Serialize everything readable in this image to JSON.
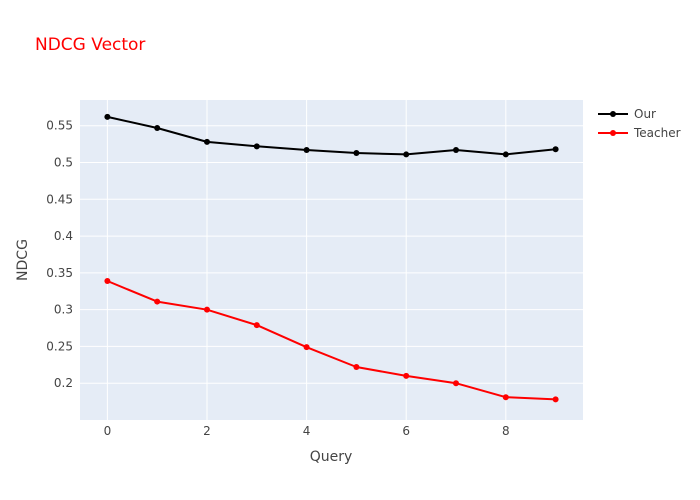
{
  "chart_data": {
    "type": "line",
    "title": "NDCG Vector",
    "xlabel": "Query",
    "ylabel": "NDCG",
    "xlim": [
      -0.55,
      9.55
    ],
    "ylim": [
      0.15,
      0.585
    ],
    "xticks": [
      0,
      2,
      4,
      6,
      8
    ],
    "xtick_labels": [
      "0",
      "2",
      "4",
      "6",
      "8"
    ],
    "yticks": [
      0.2,
      0.25,
      0.3,
      0.35,
      0.4,
      0.45,
      0.5,
      0.55
    ],
    "ytick_labels": [
      "0.2",
      "0.25",
      "0.3",
      "0.35",
      "0.4",
      "0.45",
      "0.5",
      "0.55"
    ],
    "x": [
      0,
      1,
      2,
      3,
      4,
      5,
      6,
      7,
      8,
      9
    ],
    "series": [
      {
        "name": "Our",
        "color": "#000000",
        "values": [
          0.562,
          0.547,
          0.528,
          0.522,
          0.517,
          0.513,
          0.511,
          0.517,
          0.511,
          0.518
        ]
      },
      {
        "name": "Teacher",
        "color": "#ff0000",
        "values": [
          0.339,
          0.311,
          0.3,
          0.279,
          0.249,
          0.222,
          0.21,
          0.2,
          0.181,
          0.178
        ]
      }
    ],
    "grid": true,
    "legend": "top-right",
    "title_color": "#ff0000",
    "plot_background": "#e5ecf6",
    "grid_color": "#ffffff"
  }
}
